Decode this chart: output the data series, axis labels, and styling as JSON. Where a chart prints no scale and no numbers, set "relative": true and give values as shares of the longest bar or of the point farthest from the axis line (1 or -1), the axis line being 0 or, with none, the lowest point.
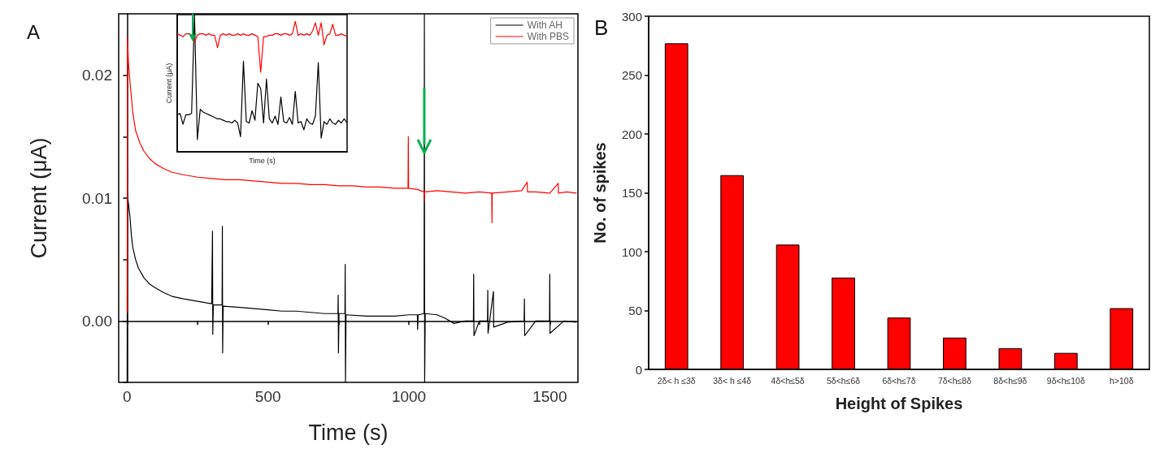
{
  "chart_data": [
    {
      "type": "line",
      "title": "A",
      "xlabel": "Time (s)",
      "ylabel": "Current (μA)",
      "xlim": [
        -30,
        1600
      ],
      "ylim": [
        -0.005,
        0.025
      ],
      "xticks": [
        0,
        {
          "value": 250,
          "label": null
        },
        500,
        {
          "value": 750,
          "label": null
        },
        1000,
        {
          "value": 1250,
          "label": null
        },
        1500
      ],
      "yticks": [
        {
          "value": -0.005,
          "label": null
        },
        {
          "value": 0,
          "label": "0.00"
        },
        {
          "value": 0.005,
          "label": null
        },
        {
          "value": 0.01,
          "label": "0.01"
        },
        {
          "value": 0.015,
          "label": null
        },
        {
          "value": 0.02,
          "label": "0.02"
        }
      ],
      "legend": "top right",
      "marker": "none",
      "series": [
        {
          "name": "With AH",
          "color": "#000000",
          "x": [
            0,
            1,
            5,
            10,
            15,
            20,
            30,
            40,
            60,
            80,
            100,
            130,
            160,
            200,
            250,
            300,
            303,
            304,
            306,
            337,
            338,
            339,
            341,
            400,
            450,
            500,
            550,
            600,
            650,
            700,
            748,
            749,
            750,
            752,
            773,
            774,
            775,
            777,
            850,
            900,
            950,
            1000,
            1030,
            1031,
            1033,
            1054,
            1055,
            1056,
            1058,
            1100,
            1130,
            1160,
            1200,
            1229,
            1230,
            1231,
            1250,
            1279,
            1280,
            1281,
            1300,
            1301,
            1350,
            1409,
            1410,
            1411,
            1450,
            1499,
            1500,
            1501,
            1550,
            1595
          ],
          "values": [
            -0.005,
            0.0102,
            0.0095,
            0.0085,
            0.007,
            0.006,
            0.005,
            0.0043,
            0.0035,
            0.003,
            0.0027,
            0.0023,
            0.002,
            0.0018,
            0.0016,
            0.0014,
            0.0073,
            -0.0011,
            0.0013,
            0.0013,
            0.0077,
            -0.0026,
            0.0012,
            0.0011,
            0.001,
            0.0009,
            0.0008,
            0.0008,
            0.0007,
            0.0006,
            0.0006,
            0.0021,
            -0.0026,
            0.0006,
            0.0006,
            0.0046,
            -0.005,
            0.0005,
            0.0004,
            0.0004,
            0.0004,
            0.0005,
            0.0005,
            -0.0007,
            0.0005,
            0.0006,
            0.025,
            -0.005,
            0.0006,
            0.0005,
            0.0002,
            -0.0002,
            0,
            0,
            0.0038,
            -0.0012,
            0,
            0,
            0.0025,
            -0.001,
            0.0024,
            -0.0005,
            -0.0001,
            0,
            0.0018,
            -0.0012,
            0,
            0,
            0.0038,
            -0.001,
            0,
            -0.0001
          ]
        },
        {
          "name": "With PBS",
          "color": "#ff0000",
          "x": [
            0,
            1,
            5,
            10,
            20,
            30,
            45,
            60,
            80,
            100,
            130,
            160,
            200,
            250,
            300,
            350,
            400,
            450,
            500,
            550,
            600,
            650,
            700,
            750,
            800,
            850,
            900,
            950,
            997,
            998,
            999,
            1030,
            1054,
            1055,
            1056,
            1100,
            1150,
            1200,
            1250,
            1294,
            1295,
            1296,
            1350,
            1400,
            1420,
            1421,
            1450,
            1500,
            1530,
            1531,
            1560,
            1595
          ],
          "values": [
            0.0007,
            0.023,
            0.021,
            0.0195,
            0.017,
            0.0155,
            0.0145,
            0.0138,
            0.0132,
            0.0128,
            0.0124,
            0.0121,
            0.0119,
            0.0117,
            0.0116,
            0.0115,
            0.0115,
            0.0114,
            0.0113,
            0.0112,
            0.0112,
            0.0111,
            0.0111,
            0.011,
            0.011,
            0.0109,
            0.0109,
            0.0108,
            0.0108,
            0.015,
            0.0108,
            0.0107,
            0.0105,
            0.0098,
            0.0105,
            0.0106,
            0.0105,
            0.0104,
            0.0105,
            0.0104,
            0.008,
            0.0104,
            0.0105,
            0.0106,
            0.0113,
            0.0105,
            0.0105,
            0.0104,
            0.0112,
            0.0104,
            0.0105,
            0.0104
          ]
        }
      ]
    },
    {
      "type": "line",
      "relative": true,
      "xlabel": "Time (s)",
      "ylabel": "Current (μA)",
      "tick_labels": false,
      "marker": "none",
      "categories": [
        null,
        null,
        null,
        null,
        null,
        null,
        null,
        null,
        null,
        null,
        null,
        null,
        null,
        null,
        null,
        null,
        null,
        null,
        null,
        null,
        null,
        null,
        null,
        null,
        null,
        null,
        null,
        null,
        null,
        null,
        null,
        null,
        null,
        null,
        null,
        null,
        null,
        null,
        null,
        null,
        null,
        null,
        null,
        null,
        null,
        null,
        null,
        null,
        null,
        null,
        null,
        null,
        null,
        null,
        null,
        null,
        null,
        null,
        null,
        null
      ],
      "series": [
        {
          "color": "#000000",
          "values": [
            0.27,
            0.28,
            0.2,
            0.27,
            0.27,
            0.28,
            1,
            0.09,
            0.31,
            0.29,
            0.28,
            0.27,
            0.26,
            0.25,
            0.24,
            0.24,
            0.23,
            0.22,
            0.22,
            0.21,
            0.23,
            0.21,
            0.11,
            0.66,
            0.22,
            0.21,
            0.3,
            0.23,
            0.5,
            0.46,
            0.21,
            0.53,
            0.24,
            0.21,
            0.26,
            0.2,
            0.4,
            0.22,
            0.21,
            0.25,
            0.2,
            0.44,
            0.21,
            0.22,
            0.16,
            0.24,
            0.21,
            0.2,
            0.26,
            0.65,
            0.1,
            0.22,
            0.2,
            0.24,
            0.21,
            0.2,
            0.23,
            0.21,
            0.24,
            0.21
          ]
        },
        {
          "color": "#ff0000",
          "values": [
            0.86,
            0.85,
            0.84,
            0.86,
            0.86,
            0.85,
            0.8,
            0.85,
            0.86,
            0.86,
            0.85,
            0.86,
            0.85,
            0.85,
            0.76,
            0.85,
            0.86,
            0.85,
            0.86,
            0.85,
            0.85,
            0.86,
            0.85,
            0.86,
            0.85,
            0.85,
            0.86,
            0.85,
            0.84,
            0.58,
            0.84,
            0.84,
            0.85,
            0.85,
            0.86,
            0.86,
            0.85,
            0.86,
            0.86,
            0.85,
            0.86,
            0.95,
            0.85,
            0.86,
            0.85,
            0.86,
            0.85,
            0.88,
            0.94,
            0.85,
            0.94,
            0.78,
            0.85,
            0.86,
            0.93,
            0.85,
            0.85,
            0.86,
            0.85,
            0.84
          ]
        }
      ]
    },
    {
      "type": "bar",
      "title": "B",
      "xlabel": "Height of Spikes",
      "ylabel": "No. of spikes",
      "ylim": [
        0,
        300
      ],
      "yticks": [
        0,
        50,
        100,
        150,
        200,
        250,
        300
      ],
      "categories": [
        "2δ< h ≤3δ",
        "3δ< h ≤4δ",
        "4δ<h≤5δ",
        "5δ<h≤6δ",
        "6δ<h≤7δ",
        "7δ<h≤8δ",
        "8δ<h≤9δ",
        "9δ<h≤10δ",
        "h>10δ"
      ],
      "values": [
        277,
        165,
        106,
        78,
        44,
        27,
        18,
        14,
        52
      ],
      "color": "#ff0000"
    }
  ]
}
